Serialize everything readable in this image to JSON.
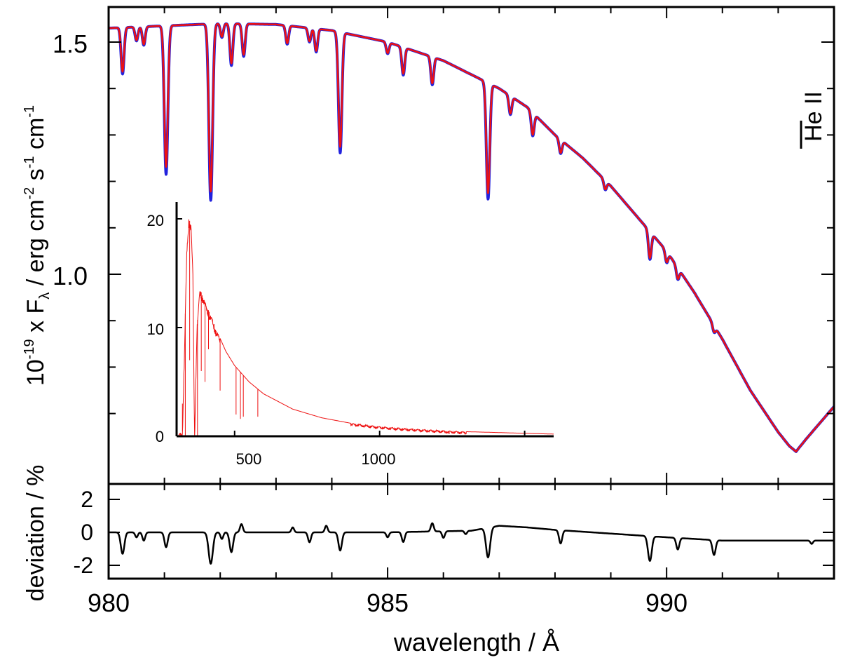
{
  "colors": {
    "model_a": "#2222dd",
    "model_b": "#ee1111",
    "deviation": "#000000",
    "frame": "#000000"
  },
  "labels": {
    "x_axis": "wavelength / Å",
    "y_axis_prefix": "10",
    "y_axis_exp": "-19",
    "y_axis_mid": " x F",
    "y_axis_sub": "λ",
    "y_axis_unit": " / erg cm",
    "y_axis_e1": "-2",
    "y_axis_s": " s",
    "y_axis_e2": "-1",
    "y_axis_cm": " cm",
    "y_axis_e3": "-1",
    "dev_axis": "deviation / %",
    "line_id": "He II"
  },
  "chart_data": [
    {
      "id": "main",
      "type": "line",
      "xlim": [
        980,
        993
      ],
      "ylim": [
        0.6,
        1.65
      ],
      "xticks_labeled": [
        980,
        985,
        990
      ],
      "yticks_labeled": [
        1.0,
        1.5
      ],
      "tick_labels_x": [
        "980",
        "985",
        "990"
      ],
      "tick_labels_y": [
        "1.0",
        "1.5"
      ],
      "continuum": {
        "x": [
          980,
          981,
          982,
          983,
          984,
          985,
          986,
          987,
          987.5,
          988,
          988.5,
          989,
          989.5,
          990,
          990.5,
          991,
          991.5,
          992,
          992.2,
          992.32,
          992.5,
          993
        ],
        "y": [
          1.53,
          1.535,
          1.54,
          1.538,
          1.525,
          1.5,
          1.46,
          1.4,
          1.36,
          1.3,
          1.25,
          1.19,
          1.12,
          1.05,
          0.96,
          0.86,
          0.75,
          0.66,
          0.63,
          0.618,
          0.645,
          0.715
        ]
      },
      "lines": [
        {
          "x": 980.25,
          "depth": 0.1
        },
        {
          "x": 980.5,
          "depth": 0.03
        },
        {
          "x": 980.63,
          "depth": 0.04
        },
        {
          "x": 981.03,
          "depth": 0.32
        },
        {
          "x": 981.83,
          "depth": 0.38
        },
        {
          "x": 982.03,
          "depth": 0.03
        },
        {
          "x": 982.2,
          "depth": 0.09
        },
        {
          "x": 982.42,
          "depth": 0.07
        },
        {
          "x": 983.2,
          "depth": 0.04
        },
        {
          "x": 983.6,
          "depth": 0.03
        },
        {
          "x": 983.72,
          "depth": 0.05
        },
        {
          "x": 984.15,
          "depth": 0.26
        },
        {
          "x": 985.0,
          "depth": 0.025
        },
        {
          "x": 985.28,
          "depth": 0.06
        },
        {
          "x": 985.8,
          "depth": 0.06
        },
        {
          "x": 986.8,
          "depth": 0.25
        },
        {
          "x": 987.2,
          "depth": 0.04
        },
        {
          "x": 987.6,
          "depth": 0.05
        },
        {
          "x": 988.1,
          "depth": 0.03
        },
        {
          "x": 988.9,
          "depth": 0.02
        },
        {
          "x": 989.7,
          "depth": 0.06
        },
        {
          "x": 990.0,
          "depth": 0.025
        },
        {
          "x": 990.2,
          "depth": 0.025
        },
        {
          "x": 990.85,
          "depth": 0.015
        }
      ],
      "series": [
        {
          "color_key": "model_a",
          "width": 4
        },
        {
          "color_key": "model_b",
          "width": 2.5
        }
      ]
    },
    {
      "id": "inset",
      "type": "line",
      "xlim": [
        300,
        1600
      ],
      "ylim": [
        0,
        21
      ],
      "tick_labels_x": [
        "500",
        "1000"
      ],
      "xticks_labeled": [
        500,
        1000
      ],
      "tick_labels_y": [
        "0",
        "10",
        "20"
      ],
      "yticks_labeled": [
        0,
        10,
        20
      ],
      "envelope": {
        "x": [
          300,
          320,
          328,
          335,
          342,
          350,
          356,
          362,
          370,
          380,
          390,
          400,
          420,
          440,
          470,
          500,
          550,
          600,
          700,
          800,
          900,
          1000,
          1100,
          1200,
          1300,
          1400,
          1500,
          1600
        ],
        "y": [
          0,
          0.5,
          9,
          17,
          20,
          19.5,
          15,
          0,
          10,
          13.5,
          13,
          12.2,
          11,
          9.6,
          7.8,
          6.5,
          5.0,
          3.9,
          2.5,
          1.7,
          1.2,
          0.9,
          0.7,
          0.55,
          0.42,
          0.35,
          0.27,
          0.2
        ]
      },
      "spikes": [
        {
          "x": 320,
          "y": 3
        },
        {
          "x": 330,
          "y": 0
        },
        {
          "x": 345,
          "y": 7
        },
        {
          "x": 372,
          "y": 0
        },
        {
          "x": 385,
          "y": 6
        },
        {
          "x": 398,
          "y": 5
        },
        {
          "x": 410,
          "y": 8
        },
        {
          "x": 450,
          "y": 4.2
        },
        {
          "x": 505,
          "y": 2
        },
        {
          "x": 520,
          "y": 1.6
        },
        {
          "x": 530,
          "y": 1.8
        },
        {
          "x": 580,
          "y": 1.8
        },
        {
          "x": 1240,
          "y": 0.2
        }
      ],
      "series": [
        {
          "color_key": "model_b",
          "width": 1
        }
      ]
    },
    {
      "id": "deviation",
      "type": "line",
      "xlim": [
        980,
        993
      ],
      "ylim": [
        -3.4,
        3.4
      ],
      "tick_labels_y": [
        "2",
        "0",
        "-2"
      ],
      "yticks_labeled": [
        2,
        0,
        -2
      ],
      "baseline": {
        "x": [
          980,
          985,
          986.5,
          987,
          987.5,
          988,
          990,
          991,
          993
        ],
        "y": [
          0,
          0,
          0.1,
          0.4,
          0.3,
          0.15,
          -0.3,
          -0.5,
          -0.5
        ]
      },
      "features": [
        {
          "x": 980.25,
          "y": -1.3
        },
        {
          "x": 980.5,
          "y": -0.3
        },
        {
          "x": 980.63,
          "y": -0.5
        },
        {
          "x": 981.03,
          "y": -0.9
        },
        {
          "x": 981.83,
          "y": -1.9
        },
        {
          "x": 982.03,
          "y": -0.4
        },
        {
          "x": 982.2,
          "y": -1.2
        },
        {
          "x": 982.38,
          "y": 0.5
        },
        {
          "x": 983.3,
          "y": 0.3
        },
        {
          "x": 983.6,
          "y": -0.6
        },
        {
          "x": 983.9,
          "y": 0.4
        },
        {
          "x": 984.15,
          "y": -1.1
        },
        {
          "x": 985.0,
          "y": -0.3
        },
        {
          "x": 985.28,
          "y": -0.6
        },
        {
          "x": 985.8,
          "y": 0.5
        },
        {
          "x": 986.0,
          "y": -0.4
        },
        {
          "x": 986.4,
          "y": -0.2
        },
        {
          "x": 986.8,
          "y": -1.8
        },
        {
          "x": 988.1,
          "y": -0.8
        },
        {
          "x": 989.7,
          "y": -1.5
        },
        {
          "x": 990.2,
          "y": -0.7
        },
        {
          "x": 990.85,
          "y": -0.9
        },
        {
          "x": 992.6,
          "y": -0.2
        }
      ]
    }
  ]
}
